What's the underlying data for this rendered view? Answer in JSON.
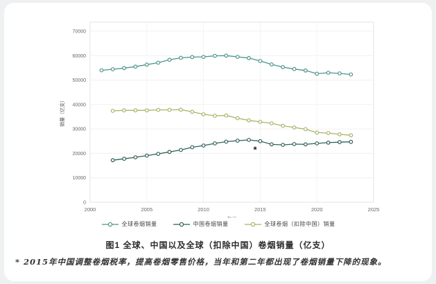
{
  "page": {
    "title": "图1 全球、中国以及全球（扣除中国）卷烟销量（亿支）",
    "footnote": "* 2015年中国调整卷烟税率，提高卷烟零售价格，当年和第二年都出现了卷烟销量下降的现象。"
  },
  "chart_data": {
    "type": "line",
    "title": "图1 全球、中国以及全球（扣除中国）卷烟销量（亿支）",
    "xlabel": "年份",
    "ylabel": "销量（亿支）",
    "xlim": [
      2000,
      2025
    ],
    "ylim": [
      0,
      70000
    ],
    "xticks": [
      2000,
      2005,
      2010,
      2015,
      2020,
      2025
    ],
    "yticks": [
      0,
      10000,
      20000,
      30000,
      40000,
      50000,
      60000,
      70000
    ],
    "grid": true,
    "legend_position": "bottom",
    "x": [
      2001,
      2002,
      2003,
      2004,
      2005,
      2006,
      2007,
      2008,
      2009,
      2010,
      2011,
      2012,
      2013,
      2014,
      2015,
      2016,
      2017,
      2018,
      2019,
      2020,
      2021,
      2022,
      2023
    ],
    "series": [
      {
        "name": "全球卷烟销量",
        "color": "#4d948b",
        "values": [
          54000,
          54400,
          54900,
          55500,
          56300,
          57100,
          58300,
          59100,
          59400,
          59500,
          59900,
          60000,
          59500,
          59000,
          57800,
          56400,
          55300,
          54500,
          53900,
          52600,
          53000,
          52700,
          52300
        ]
      },
      {
        "name": "中国卷烟销量",
        "color": "#2f6059",
        "values": [
          null,
          17200,
          17800,
          18400,
          19100,
          19800,
          20600,
          21400,
          22500,
          23200,
          24100,
          24800,
          25200,
          25500,
          25000,
          23700,
          23500,
          23800,
          23700,
          24100,
          24400,
          24600,
          24700
        ]
      },
      {
        "name": "全球卷烟（扣除中国）销量",
        "color": "#a6b566",
        "values": [
          null,
          37400,
          37600,
          37600,
          37600,
          37800,
          37800,
          37900,
          37000,
          36000,
          35400,
          35500,
          34400,
          33500,
          32900,
          32300,
          31300,
          30600,
          29900,
          28500,
          28300,
          27800,
          27400
        ]
      }
    ],
    "annotation": {
      "text": "*",
      "x": 2014.55,
      "y": 20300
    }
  }
}
